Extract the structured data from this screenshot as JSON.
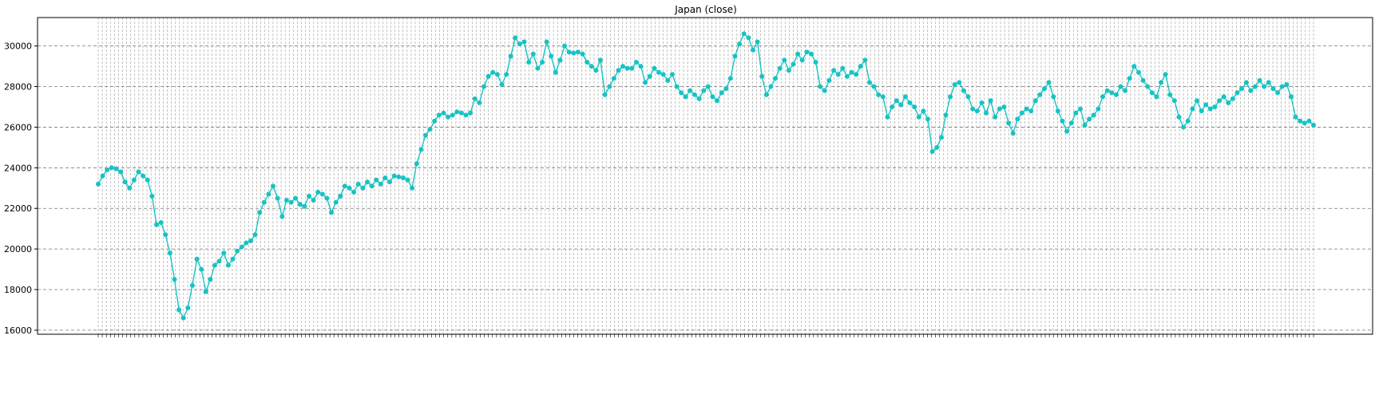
{
  "chart_data": {
    "type": "line",
    "title": "Japan (close)",
    "xlabel": "",
    "ylabel": "",
    "ylim": [
      15800,
      31400
    ],
    "yticks": [
      16000,
      18000,
      20000,
      22000,
      24000,
      26000,
      28000,
      30000
    ],
    "grid": "dashed",
    "marker": "circle",
    "series": [
      {
        "color": "#17c3c3",
        "y": [
          23200,
          23600,
          23900,
          24000,
          23950,
          23800,
          23300,
          23000,
          23400,
          23800,
          23600,
          23400,
          22600,
          21200,
          21300,
          20700,
          19800,
          18500,
          17000,
          16600,
          17100,
          18200,
          19500,
          19000,
          17900,
          18500,
          19200,
          19400,
          19800,
          19200,
          19500,
          19900,
          20100,
          20300,
          20400,
          20700,
          21800,
          22300,
          22700,
          23100,
          22500,
          21600,
          22400,
          22300,
          22500,
          22200,
          22100,
          22600,
          22400,
          22800,
          22700,
          22500,
          21800,
          22300,
          22600,
          23100,
          23000,
          22800,
          23200,
          23000,
          23300,
          23100,
          23400,
          23200,
          23500,
          23300,
          23600,
          23550,
          23500,
          23400,
          23000,
          24200,
          24900,
          25600,
          25900,
          26300,
          26600,
          26700,
          26500,
          26600,
          26750,
          26700,
          26600,
          26700,
          27400,
          27200,
          28000,
          28500,
          28700,
          28600,
          28100,
          28600,
          29500,
          30400,
          30100,
          30200,
          29200,
          29600,
          28900,
          29200,
          30200,
          29500,
          28700,
          29300,
          30000,
          29700,
          29650,
          29700,
          29600,
          29200,
          29000,
          28800,
          29300,
          27600,
          28000,
          28400,
          28800,
          29000,
          28900,
          28900,
          29200,
          29000,
          28200,
          28500,
          28900,
          28700,
          28600,
          28300,
          28600,
          28000,
          27700,
          27500,
          27800,
          27600,
          27400,
          27800,
          28000,
          27500,
          27300,
          27700,
          27900,
          28400,
          29500,
          30100,
          30600,
          30400,
          29800,
          30200,
          28500,
          27600,
          28000,
          28400,
          28900,
          29300,
          28800,
          29100,
          29600,
          29300,
          29700,
          29600,
          29200,
          28000,
          27800,
          28300,
          28800,
          28600,
          28900,
          28500,
          28700,
          28600,
          29000,
          29300,
          28200,
          28000,
          27600,
          27500,
          26500,
          27000,
          27300,
          27100,
          27500,
          27200,
          27000,
          26500,
          26800,
          26400,
          24800,
          25000,
          25500,
          26600,
          27500,
          28100,
          28200,
          27800,
          27500,
          26900,
          26800,
          27200,
          26700,
          27300,
          26500,
          26900,
          27000,
          26200,
          25700,
          26400,
          26700,
          26900,
          26800,
          27300,
          27600,
          27900,
          28200,
          27500,
          26800,
          26300,
          25800,
          26200,
          26700,
          26900,
          26100,
          26400,
          26600,
          26900,
          27500,
          27800,
          27700,
          27600,
          28000,
          27800,
          28400,
          29000,
          28700,
          28300,
          28000,
          27700,
          27500,
          28200,
          28600,
          27600,
          27300,
          26500,
          26000,
          26300,
          26900,
          27300,
          26800,
          27100,
          26900,
          27000,
          27300,
          27500,
          27200,
          27400,
          27700,
          27900,
          28200,
          27800,
          28000,
          28300,
          28000,
          28200,
          27900,
          27700,
          28000,
          28100,
          27500,
          26500,
          26300,
          26200,
          26300,
          26100
        ]
      }
    ]
  }
}
